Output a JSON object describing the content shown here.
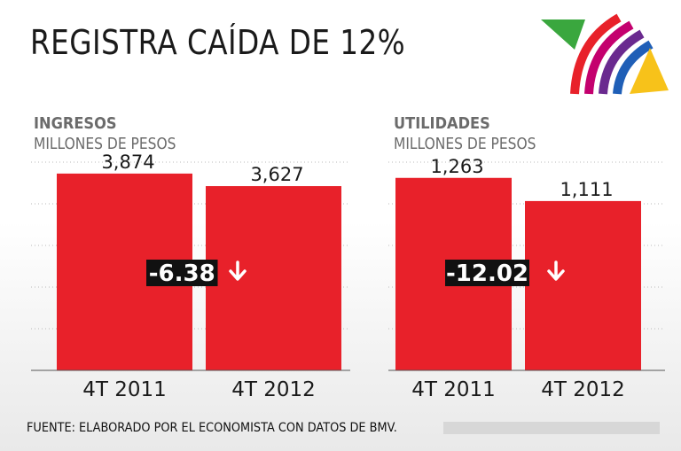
{
  "header": {
    "title": "REGISTRA CAÍDA DE 12%"
  },
  "footer": {
    "source": "FUENTE: ELABORADO POR EL ECONOMISTA CON DATOS DE BMV."
  },
  "colors": {
    "bar": "#e8212a",
    "badge_bg": "#111111",
    "arrow_bg": "#e8212a",
    "text": "#1a1a1a",
    "subtext": "#6b6b6b"
  },
  "chart_data": [
    {
      "type": "bar",
      "title": "INGRESOS",
      "subtitle": "MILLONES DE PESOS",
      "categories": [
        "4T 2011",
        "4T 2012"
      ],
      "values": [
        3874,
        3627
      ],
      "value_labels": [
        "3,874",
        "3,627"
      ],
      "change_label": "-6.38",
      "change_icon": "arrow-down-icon",
      "ylim": [
        0,
        4500
      ],
      "grid": true
    },
    {
      "type": "bar",
      "title": "UTILIDADES",
      "subtitle": "MILLONES DE PESOS",
      "categories": [
        "4T 2011",
        "4T 2012"
      ],
      "values": [
        1263,
        1111
      ],
      "value_labels": [
        "1,263",
        "1,111"
      ],
      "change_label": "-12.02",
      "change_icon": "arrow-down-icon",
      "ylim": [
        0,
        1500
      ],
      "grid": true
    }
  ]
}
